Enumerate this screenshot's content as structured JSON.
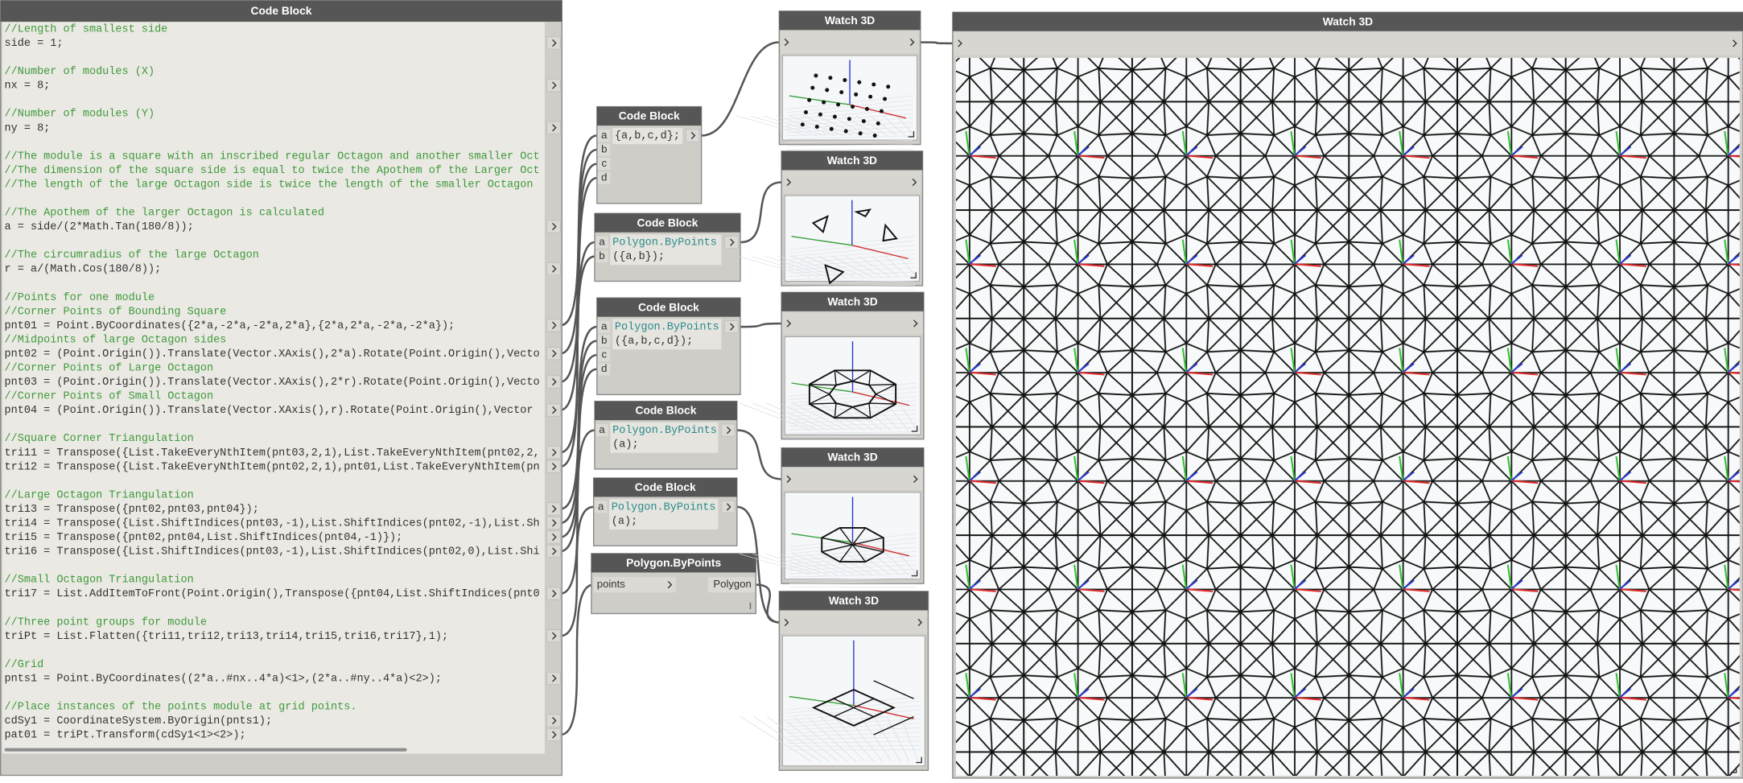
{
  "code_block_main": {
    "title": "Code Block",
    "paragraphs": [
      [
        "//Length of smallest side",
        "side = 1;"
      ],
      [
        "//Number of modules (X)",
        "nx = 8;"
      ],
      [
        "//Number of modules (Y)",
        "ny = 8;"
      ],
      [
        "//The module is a square with an inscribed regular Octagon and another smaller Oct",
        "//The dimension of the square side is equal to twice the Apothem of the Larger Oct",
        "//The length of the large Octagon side is twice the length of the smaller Octagon"
      ],
      [
        "//The Apothem of the larger Octagon is calculated",
        "a = side/(2*Math.Tan(180/8));"
      ],
      [
        "//The circumradius of the large Octagon",
        "r = a/(Math.Cos(180/8));"
      ],
      [
        "//Points for one module",
        "//Corner Points of Bounding Square",
        "pnt01 = Point.ByCoordinates({2*a,-2*a,-2*a,2*a},{2*a,2*a,-2*a,-2*a});",
        "//Midpoints of large Octagon sides",
        "pnt02 = (Point.Origin()).Translate(Vector.XAxis(),2*a).Rotate(Point.Origin(),Vecto",
        "//Corner Points of Large Octagon",
        "pnt03 = (Point.Origin()).Translate(Vector.XAxis(),2*r).Rotate(Point.Origin(),Vecto",
        "//Corner Points of Small Octagon",
        "pnt04 = (Point.Origin()).Translate(Vector.XAxis(),r).Rotate(Point.Origin(),Vector"
      ],
      [
        "//Square Corner Triangulation",
        "tri11 = Transpose({List.TakeEveryNthItem(pnt03,2,1),List.TakeEveryNthItem(pnt02,2,",
        "tri12 = Transpose({List.TakeEveryNthItem(pnt02,2,1),pnt01,List.TakeEveryNthItem(pn"
      ],
      [
        "//Large Octagon Triangulation",
        "tri13 = Transpose({pnt02,pnt03,pnt04});",
        "tri14 = Transpose({List.ShiftIndices(pnt03,-1),List.ShiftIndices(pnt02,-1),List.Sh",
        "tri15 = Transpose({pnt02,pnt04,List.ShiftIndices(pnt04,-1)});",
        "tri16 = Transpose({List.ShiftIndices(pnt03,-1),List.ShiftIndices(pnt02,0),List.Shi"
      ],
      [
        "//Small Octagon Triangulation",
        "tri17 = List.AddItemToFront(Point.Origin(),Transpose({pnt04,List.ShiftIndices(pnt0"
      ],
      [
        "//Three point groups for module",
        "triPt = List.Flatten({tri11,tri12,tri13,tri14,tri15,tri16,tri17},1);"
      ],
      [
        "//Grid",
        "pnts1 = Point.ByCoordinates((2*a..#nx..4*a)<1>,(2*a..#ny..4*a)<2>);"
      ],
      [
        "//Place instances of the points module at grid points.",
        "cdSy1 = CoordinateSystem.ByOrigin(pnts1);",
        "pat01 = triPt.Transform(cdSy1<1><2>);"
      ]
    ]
  },
  "code_blocks": [
    {
      "title": "Code Block",
      "inputs": [
        "a",
        "b",
        "c",
        "d"
      ],
      "code": [
        "{a,b,c,d};"
      ]
    },
    {
      "title": "Code Block",
      "inputs": [
        "a",
        "b"
      ],
      "code": [
        "Polygon.ByPoints",
        "({a,b});"
      ]
    },
    {
      "title": "Code Block",
      "inputs": [
        "a",
        "b",
        "c",
        "d"
      ],
      "code": [
        "Polygon.ByPoints",
        "({a,b,c,d});"
      ]
    },
    {
      "title": "Code Block",
      "inputs": [
        "a"
      ],
      "code": [
        "Polygon.ByPoints",
        "(a);"
      ]
    },
    {
      "title": "Code Block",
      "inputs": [
        "a"
      ],
      "code": [
        "Polygon.ByPoints",
        "(a);"
      ]
    }
  ],
  "polygon_node": {
    "title": "Polygon.ByPoints",
    "input": "points",
    "output": "Polygon"
  },
  "watch_nodes": [
    {
      "title": "Watch 3D"
    },
    {
      "title": "Watch 3D"
    },
    {
      "title": "Watch 3D"
    },
    {
      "title": "Watch 3D"
    },
    {
      "title": "Watch 3D"
    }
  ],
  "watch_large": {
    "title": "Watch 3D"
  }
}
